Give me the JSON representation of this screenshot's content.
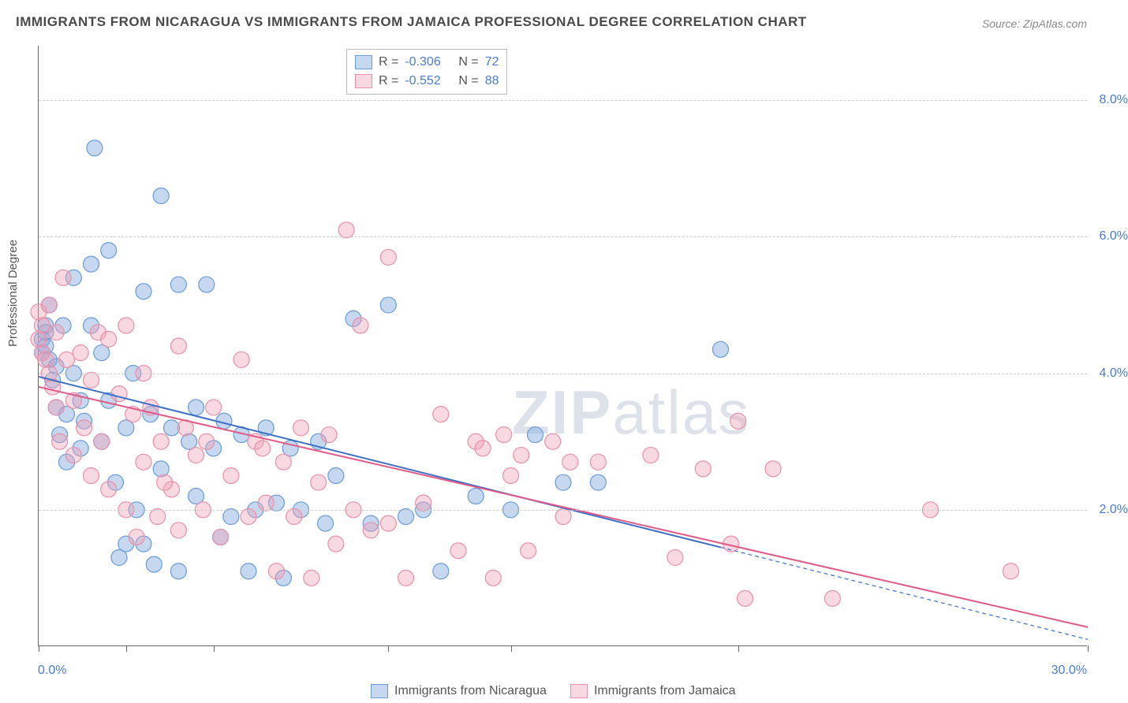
{
  "title": "IMMIGRANTS FROM NICARAGUA VS IMMIGRANTS FROM JAMAICA PROFESSIONAL DEGREE CORRELATION CHART",
  "source": "Source: ZipAtlas.com",
  "y_axis_label": "Professional Degree",
  "watermark": "ZIPatlas",
  "chart": {
    "type": "scatter",
    "x_range": [
      0,
      30
    ],
    "y_range": [
      0,
      8.8
    ],
    "x_ticks_label_left": "0.0%",
    "x_ticks_label_right": "30.0%",
    "x_tick_positions": [
      0,
      2.5,
      5,
      10,
      13.5,
      20,
      30
    ],
    "y_gridlines": [
      2.0,
      4.0,
      6.0,
      8.0
    ],
    "y_tick_labels": [
      "2.0%",
      "4.0%",
      "6.0%",
      "8.0%"
    ],
    "y_tick_fontsize": 16,
    "x_tick_fontsize": 16,
    "gridline_color": "#cccccc",
    "axis_color": "#666666",
    "background_color": "#ffffff",
    "series": [
      {
        "name": "Immigrants from Nicaragua",
        "color_fill": "rgba(127,168,222,0.45)",
        "color_stroke": "#6a9bd8",
        "marker_radius": 10,
        "R": "-0.306",
        "N": "72",
        "trend": {
          "x1": 0,
          "y1": 3.95,
          "x2": 19.5,
          "y2": 1.45,
          "color": "#3b6fc8",
          "width": 2,
          "dash_after_x": 19.5,
          "dash_to_x": 30,
          "dash_to_y": 0.1
        },
        "points": [
          [
            0.1,
            4.5
          ],
          [
            0.1,
            4.3
          ],
          [
            0.2,
            4.7
          ],
          [
            0.2,
            4.4
          ],
          [
            0.2,
            4.6
          ],
          [
            0.3,
            5.0
          ],
          [
            0.3,
            4.2
          ],
          [
            0.4,
            3.9
          ],
          [
            0.5,
            4.1
          ],
          [
            0.5,
            3.5
          ],
          [
            0.6,
            3.1
          ],
          [
            0.7,
            4.7
          ],
          [
            0.8,
            3.4
          ],
          [
            0.8,
            2.7
          ],
          [
            1.0,
            4.0
          ],
          [
            1.0,
            5.4
          ],
          [
            1.2,
            3.6
          ],
          [
            1.2,
            2.9
          ],
          [
            1.3,
            3.3
          ],
          [
            1.5,
            5.6
          ],
          [
            1.5,
            4.7
          ],
          [
            1.6,
            7.3
          ],
          [
            1.8,
            3.0
          ],
          [
            1.8,
            4.3
          ],
          [
            2.0,
            5.8
          ],
          [
            2.0,
            3.6
          ],
          [
            2.2,
            2.4
          ],
          [
            2.3,
            1.3
          ],
          [
            2.5,
            3.2
          ],
          [
            2.5,
            1.5
          ],
          [
            2.7,
            4.0
          ],
          [
            2.8,
            2.0
          ],
          [
            3.0,
            5.2
          ],
          [
            3.0,
            1.5
          ],
          [
            3.2,
            3.4
          ],
          [
            3.3,
            1.2
          ],
          [
            3.5,
            6.6
          ],
          [
            3.5,
            2.6
          ],
          [
            3.8,
            3.2
          ],
          [
            4.0,
            5.3
          ],
          [
            4.0,
            1.1
          ],
          [
            4.3,
            3.0
          ],
          [
            4.5,
            2.2
          ],
          [
            4.5,
            3.5
          ],
          [
            4.8,
            5.3
          ],
          [
            5.0,
            2.9
          ],
          [
            5.2,
            1.6
          ],
          [
            5.3,
            3.3
          ],
          [
            5.5,
            1.9
          ],
          [
            5.8,
            3.1
          ],
          [
            6.0,
            1.1
          ],
          [
            6.2,
            2.0
          ],
          [
            6.5,
            3.2
          ],
          [
            6.8,
            2.1
          ],
          [
            7.0,
            1.0
          ],
          [
            7.2,
            2.9
          ],
          [
            7.5,
            2.0
          ],
          [
            8.0,
            3.0
          ],
          [
            8.2,
            1.8
          ],
          [
            8.5,
            2.5
          ],
          [
            9.0,
            4.8
          ],
          [
            9.5,
            1.8
          ],
          [
            10.0,
            5.0
          ],
          [
            10.5,
            1.9
          ],
          [
            11.0,
            2.0
          ],
          [
            11.5,
            1.1
          ],
          [
            12.5,
            2.2
          ],
          [
            13.5,
            2.0
          ],
          [
            15.0,
            2.4
          ],
          [
            16.0,
            2.4
          ],
          [
            19.5,
            4.35
          ],
          [
            14.2,
            3.1
          ]
        ]
      },
      {
        "name": "Immigrants from Jamaica",
        "color_fill": "rgba(240,160,180,0.40)",
        "color_stroke": "#e98fa8",
        "marker_radius": 10,
        "R": "-0.552",
        "N": "88",
        "trend": {
          "x1": 0,
          "y1": 3.8,
          "x2": 30,
          "y2": 0.28,
          "color": "#e05a88",
          "width": 2
        },
        "points": [
          [
            0.0,
            4.9
          ],
          [
            0.0,
            4.5
          ],
          [
            0.1,
            4.3
          ],
          [
            0.1,
            4.7
          ],
          [
            0.2,
            4.2
          ],
          [
            0.3,
            5.0
          ],
          [
            0.3,
            4.0
          ],
          [
            0.4,
            3.8
          ],
          [
            0.5,
            4.6
          ],
          [
            0.5,
            3.5
          ],
          [
            0.6,
            3.0
          ],
          [
            0.7,
            5.4
          ],
          [
            0.8,
            4.2
          ],
          [
            1.0,
            3.6
          ],
          [
            1.0,
            2.8
          ],
          [
            1.2,
            4.3
          ],
          [
            1.3,
            3.2
          ],
          [
            1.5,
            3.9
          ],
          [
            1.5,
            2.5
          ],
          [
            1.7,
            4.6
          ],
          [
            1.8,
            3.0
          ],
          [
            2.0,
            4.5
          ],
          [
            2.0,
            2.3
          ],
          [
            2.3,
            3.7
          ],
          [
            2.5,
            4.7
          ],
          [
            2.5,
            2.0
          ],
          [
            2.7,
            3.4
          ],
          [
            2.8,
            1.6
          ],
          [
            3.0,
            4.0
          ],
          [
            3.0,
            2.7
          ],
          [
            3.2,
            3.5
          ],
          [
            3.4,
            1.9
          ],
          [
            3.5,
            3.0
          ],
          [
            3.8,
            2.3
          ],
          [
            4.0,
            4.4
          ],
          [
            4.0,
            1.7
          ],
          [
            4.2,
            3.2
          ],
          [
            4.5,
            2.8
          ],
          [
            4.7,
            2.0
          ],
          [
            5.0,
            3.5
          ],
          [
            5.2,
            1.6
          ],
          [
            5.5,
            2.5
          ],
          [
            5.8,
            4.2
          ],
          [
            6.0,
            1.9
          ],
          [
            6.2,
            3.0
          ],
          [
            6.5,
            2.1
          ],
          [
            6.8,
            1.1
          ],
          [
            7.0,
            2.7
          ],
          [
            7.3,
            1.9
          ],
          [
            7.5,
            3.2
          ],
          [
            7.8,
            1.0
          ],
          [
            8.0,
            2.4
          ],
          [
            8.3,
            3.1
          ],
          [
            8.5,
            1.5
          ],
          [
            8.8,
            6.1
          ],
          [
            9.0,
            2.0
          ],
          [
            9.2,
            4.7
          ],
          [
            9.5,
            1.7
          ],
          [
            10.0,
            5.7
          ],
          [
            10.0,
            1.8
          ],
          [
            10.5,
            1.0
          ],
          [
            11.0,
            2.1
          ],
          [
            11.5,
            3.4
          ],
          [
            12.0,
            1.4
          ],
          [
            12.5,
            3.0
          ],
          [
            12.7,
            2.9
          ],
          [
            13.0,
            1.0
          ],
          [
            13.3,
            3.1
          ],
          [
            13.5,
            2.5
          ],
          [
            14.0,
            1.4
          ],
          [
            14.7,
            3.0
          ],
          [
            15.0,
            1.9
          ],
          [
            15.2,
            2.7
          ],
          [
            16.0,
            2.7
          ],
          [
            17.5,
            2.8
          ],
          [
            18.2,
            1.3
          ],
          [
            19.0,
            2.6
          ],
          [
            19.8,
            1.5
          ],
          [
            20.0,
            3.3
          ],
          [
            20.2,
            0.7
          ],
          [
            21.0,
            2.6
          ],
          [
            22.7,
            0.7
          ],
          [
            25.5,
            2.0
          ],
          [
            27.8,
            1.1
          ],
          [
            13.8,
            2.8
          ],
          [
            6.4,
            2.9
          ],
          [
            4.8,
            3.0
          ],
          [
            3.6,
            2.4
          ]
        ]
      }
    ]
  },
  "legend_top": {
    "rows": [
      {
        "swatch_fill": "rgba(127,168,222,0.45)",
        "swatch_border": "#6a9bd8",
        "R_label": "R =",
        "R_val": "-0.306",
        "N_label": "N =",
        "N_val": "72"
      },
      {
        "swatch_fill": "rgba(240,160,180,0.40)",
        "swatch_border": "#e98fa8",
        "R_label": "R =",
        "R_val": "-0.552",
        "N_label": "N =",
        "N_val": "88"
      }
    ],
    "label_color": "#555",
    "value_color": "#4a7bd0"
  },
  "legend_bottom": {
    "items": [
      {
        "label": "Immigrants from Nicaragua",
        "swatch_fill": "rgba(127,168,222,0.45)",
        "swatch_border": "#6a9bd8"
      },
      {
        "label": "Immigrants from Jamaica",
        "swatch_fill": "rgba(240,160,180,0.40)",
        "swatch_border": "#e98fa8"
      }
    ]
  }
}
